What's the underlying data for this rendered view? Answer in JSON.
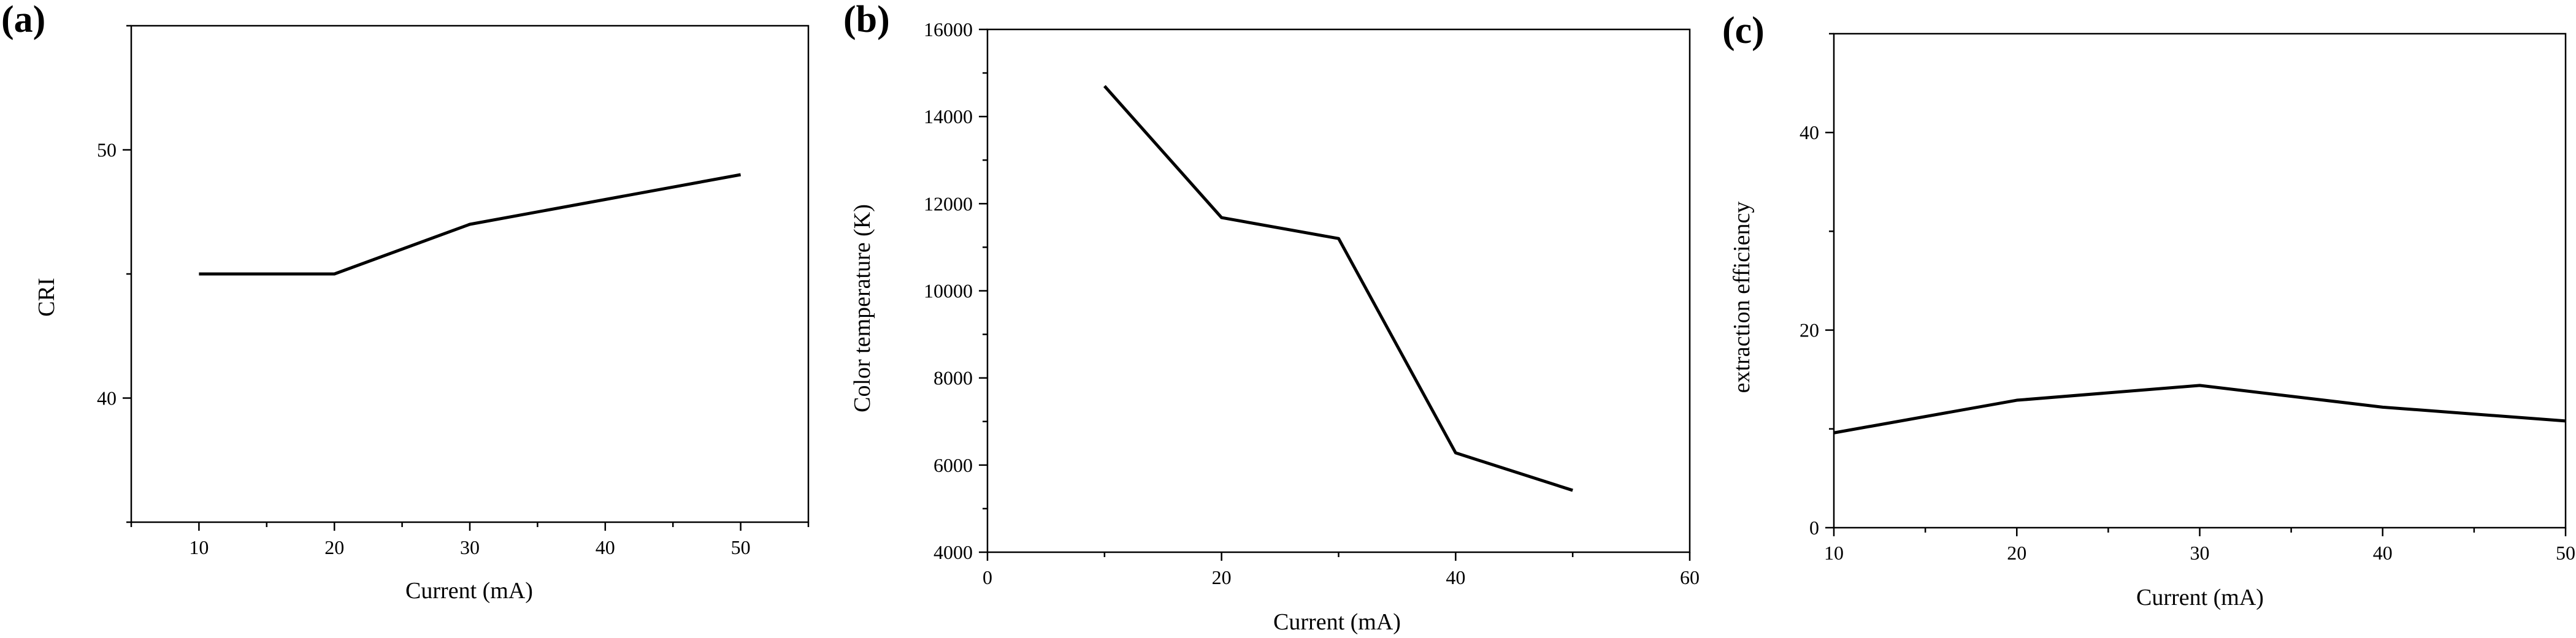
{
  "chart_data": [
    {
      "panel": "(a)",
      "type": "line",
      "title": "",
      "xlabel": "Current (mA)",
      "ylabel": "CRI",
      "xlim": [
        5,
        55
      ],
      "ylim": [
        35,
        55
      ],
      "xticks": [
        10,
        20,
        30,
        40,
        50
      ],
      "yticks": [
        40,
        50
      ],
      "x": [
        10,
        20,
        30,
        40,
        50
      ],
      "series": [
        {
          "values": [
            45,
            45,
            47,
            48,
            49
          ]
        }
      ],
      "grid": false
    },
    {
      "panel": "(b)",
      "type": "line",
      "title": "",
      "xlabel": "Current (mA)",
      "ylabel": "Color temperature (K)",
      "xlim": [
        0,
        60
      ],
      "ylim": [
        4000,
        16000
      ],
      "xticks": [
        0,
        20,
        40,
        60
      ],
      "yticks": [
        4000,
        6000,
        8000,
        10000,
        12000,
        14000,
        16000
      ],
      "x": [
        10,
        20,
        30,
        40,
        50
      ],
      "series": [
        {
          "values": [
            14700,
            11680,
            11200,
            6280,
            5420
          ]
        }
      ],
      "grid": false
    },
    {
      "panel": "(c)",
      "type": "line",
      "title": "",
      "xlabel": "Current (mA)",
      "ylabel": "extraction efficiency",
      "xlim": [
        10,
        50
      ],
      "ylim": [
        0,
        50
      ],
      "xticks": [
        10,
        20,
        30,
        40,
        50
      ],
      "yticks": [
        0,
        20,
        40
      ],
      "x": [
        10,
        20,
        30,
        40,
        50
      ],
      "series": [
        {
          "values": [
            9.6,
            12.9,
            14.4,
            12.2,
            10.8
          ]
        }
      ],
      "grid": false
    }
  ]
}
